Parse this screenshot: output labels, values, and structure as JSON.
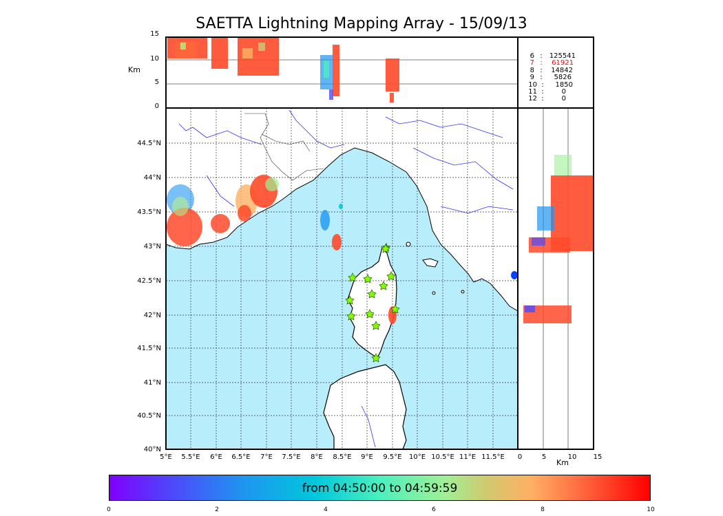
{
  "title": "SAETTA Lightning Mapping Array - 15/09/13",
  "altitude_panel": {
    "unit_label": "Km",
    "ticks": [
      "0",
      "5",
      "10",
      "15"
    ]
  },
  "stats": [
    {
      "stations": "6",
      "count": "125541",
      "color": "#000000"
    },
    {
      "stations": "7",
      "count": "61921",
      "color": "#ff0000"
    },
    {
      "stations": "8",
      "count": "14842",
      "color": "#000000"
    },
    {
      "stations": "9",
      "count": "5826",
      "color": "#000000"
    },
    {
      "stations": "10",
      "count": "1850",
      "color": "#000000"
    },
    {
      "stations": "11",
      "count": "0",
      "color": "#000000"
    },
    {
      "stations": "12",
      "count": "0",
      "color": "#000000"
    }
  ],
  "map": {
    "lon_ticks": [
      "5°E",
      "5.5°E",
      "6°E",
      "6.5°E",
      "7°E",
      "7.5°E",
      "8°E",
      "8.5°E",
      "9°E",
      "9.5°E",
      "10°E",
      "10.5°E",
      "11°E",
      "11.5°E"
    ],
    "lat_ticks": [
      "44.5°N",
      "44°N",
      "43.5°N",
      "43°N",
      "42.5°N",
      "42°N",
      "41.5°N",
      "41°N",
      "40.5°N",
      "40°N"
    ],
    "sea_color": "#b8eefc",
    "land_color": "#ffffff",
    "station_color": "#7fff00"
  },
  "side_panel": {
    "unit_label": "Km",
    "ticks": [
      "0",
      "5",
      "10",
      "15"
    ]
  },
  "colorbar": {
    "label": "from 04:50:00 to 04:59:59",
    "ticks": [
      "0",
      "2",
      "4",
      "6",
      "8",
      "10"
    ]
  }
}
